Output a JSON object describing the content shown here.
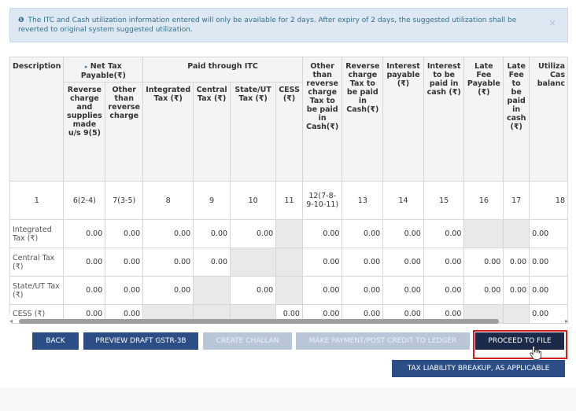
{
  "alert": {
    "text": "The ITC and Cash utilization information entered will only be available for 2 days. After expiry of 2 days, the suggested utilization shall be reverted to original system suggested utilization.",
    "close": "×"
  },
  "table": {
    "header": {
      "description": "Description",
      "net_tax_payable": "Net Tax Payable(₹)",
      "paid_through_itc": "Paid through ITC",
      "col_other_than_reverse": "Other than reverse charge Tax to be paid in Cash(₹)",
      "col_reverse_charge_cash": "Reverse charge Tax to be paid in Cash(₹)",
      "col_interest_payable": "Interest payable (₹)",
      "col_interest_cash": "Interest to be paid in cash (₹)",
      "col_late_fee_payable": "Late Fee Payable (₹)",
      "col_late_fee_cash": "Late Fee to be paid in cash (₹)",
      "col_utilizable": "Utiliza Cas balanc",
      "sub_reverse_charge": "Reverse charge and supplies made u/s 9(5)",
      "sub_other_than_reverse": "Other than reverse charge",
      "sub_integrated": "Integrated Tax (₹)",
      "sub_central": "Central Tax (₹)",
      "sub_state": "State/UT Tax (₹)",
      "sub_cess": "CESS (₹)"
    },
    "column_numbers": [
      "1",
      "6(2-4)",
      "7(3-5)",
      "8",
      "9",
      "10",
      "11",
      "12(7-8-9-10-11)",
      "13",
      "14",
      "15",
      "16",
      "17",
      "18"
    ],
    "rows": [
      {
        "label": "Integrated Tax (₹)",
        "cells": [
          "0.00",
          "0.00",
          "0.00",
          "0.00",
          "0.00",
          "",
          "0.00",
          "0.00",
          "0.00",
          "0.00",
          "",
          "",
          "0.00"
        ]
      },
      {
        "label": "Central Tax (₹)",
        "cells": [
          "0.00",
          "0.00",
          "0.00",
          "0.00",
          "",
          "",
          "0.00",
          "0.00",
          "0.00",
          "0.00",
          "0.00",
          "0.00",
          "0.00"
        ]
      },
      {
        "label": "State/UT Tax (₹)",
        "cells": [
          "0.00",
          "0.00",
          "0.00",
          "",
          "0.00",
          "",
          "0.00",
          "0.00",
          "0.00",
          "0.00",
          "0.00",
          "0.00",
          "0.00"
        ]
      },
      {
        "label": "CESS (₹)",
        "cells": [
          "0.00",
          "0.00",
          "",
          "",
          "",
          "0.00",
          "0.00",
          "0.00",
          "0.00",
          "0.00",
          "",
          "",
          "0.00"
        ]
      }
    ]
  },
  "buttons": {
    "back": "BACK",
    "preview": "PREVIEW DRAFT GSTR-3B",
    "create_challan": "CREATE CHALLAN",
    "make_payment": "MAKE PAYMENT/POST CREDIT TO LEDGER",
    "proceed": "PROCEED TO FILE",
    "tax_liability": "TAX LIABILITY BREAKUP, AS APPLICABLE"
  },
  "colors": {
    "primary": "#2c4e86",
    "disabled": "#b9c6d8",
    "highlight": "#d51f1f",
    "alert_bg": "#dde8f2"
  }
}
